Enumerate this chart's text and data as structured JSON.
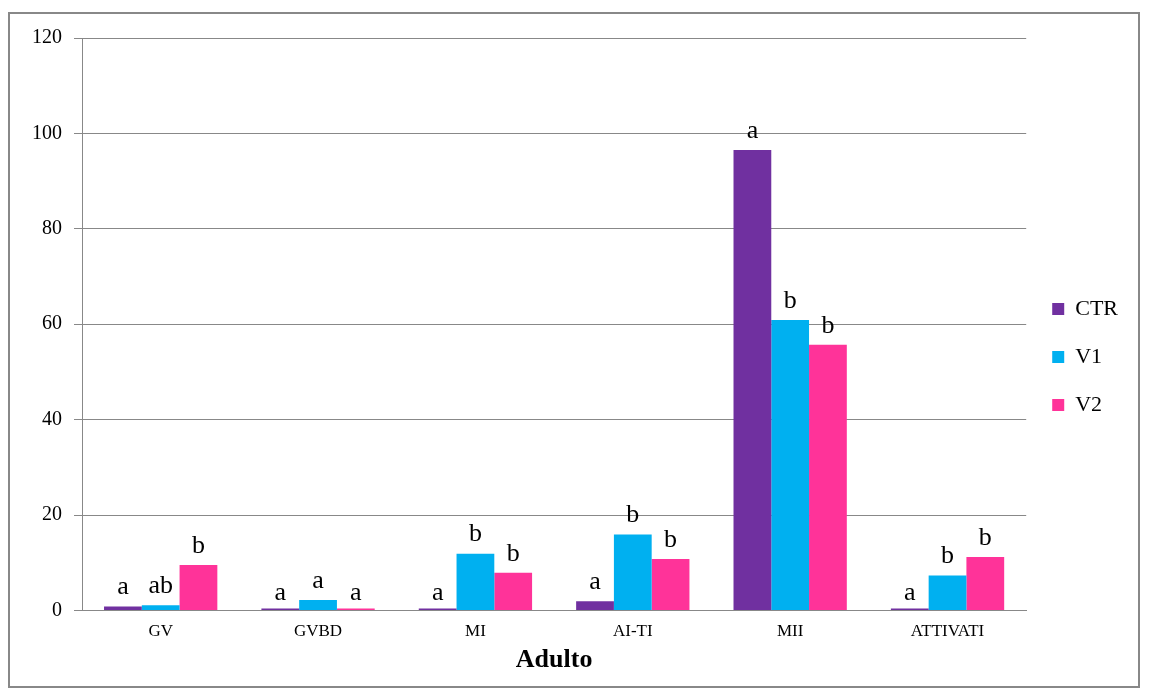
{
  "chart_data": {
    "type": "bar",
    "xlabel": "Adulto",
    "categories": [
      "GV",
      "GVBD",
      "MI",
      "AI-TI",
      "MII",
      "ATTIVATI"
    ],
    "series": [
      {
        "name": "CTR",
        "color": "#7030a0",
        "values": [
          0.8,
          0,
          0,
          1.9,
          96.5,
          0
        ],
        "value_labels": [
          "a",
          "a",
          "a",
          "a",
          "a",
          "a"
        ]
      },
      {
        "name": "V1",
        "color": "#00b0f0",
        "values": [
          1.1,
          2.2,
          11.9,
          15.9,
          60.9,
          7.3
        ],
        "value_labels": [
          "ab",
          "a",
          "b",
          "b",
          "b",
          "b"
        ]
      },
      {
        "name": "V2",
        "color": "#ff3399",
        "values": [
          9.5,
          0,
          7.9,
          10.8,
          55.7,
          11.2
        ],
        "value_labels": [
          "b",
          "a",
          "b",
          "b",
          "b",
          "b"
        ]
      }
    ],
    "ylim": [
      0,
      120
    ],
    "yticks": [
      0,
      20,
      40,
      60,
      80,
      100,
      120
    ],
    "grid": "y",
    "legend": "right"
  }
}
